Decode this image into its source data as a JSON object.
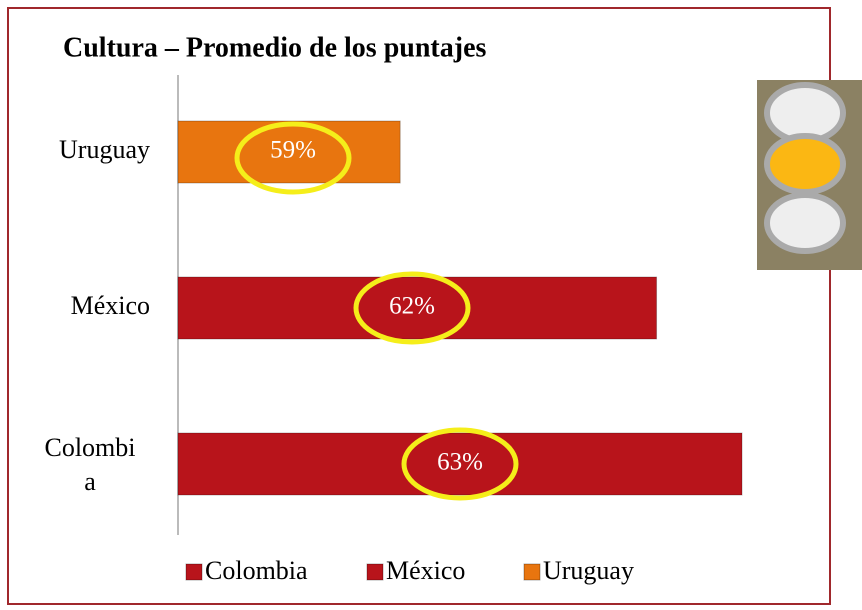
{
  "chart_data": {
    "type": "hbar",
    "title": "Cultura – Promedio de los puntajes",
    "categories": [
      "Uruguay",
      "México",
      "Colombia"
    ],
    "values": [
      59,
      62,
      63
    ],
    "value_labels": [
      "59%",
      "62%",
      "63%"
    ],
    "colors": [
      "#e8750f",
      "#b8141b",
      "#b8141b"
    ],
    "xlim": [
      56.4,
      63
    ]
  }
}
